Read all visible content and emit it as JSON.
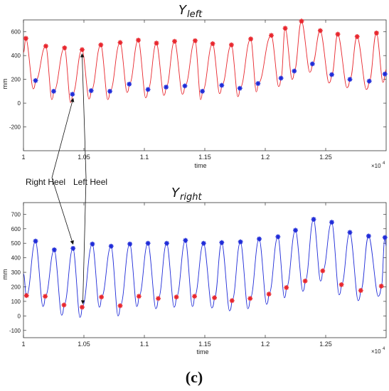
{
  "chart_data": [
    {
      "type": "line",
      "title_main": "Y",
      "title_sub": "left",
      "xlabel": "time",
      "ylabel": "mm",
      "x_exponent": "×10",
      "x_exponent_power": "4",
      "xlim": [
        10000,
        13000
      ],
      "ylim": [
        -400,
        700
      ],
      "x_ticks": [
        10000,
        10500,
        11000,
        11500,
        12000,
        12500
      ],
      "x_tick_labels": [
        "1",
        "1.05",
        "1.1",
        "1.15",
        "1.2",
        "1.25"
      ],
      "y_ticks": [
        -200,
        0,
        200,
        400,
        600
      ],
      "y_tick_labels": [
        "-200",
        "0",
        "200",
        "400",
        "600"
      ],
      "line_color": "#e8262d",
      "series": [
        {
          "marker": "peak",
          "color": "#e8262d",
          "x": [
            10020,
            10185,
            10340,
            10485,
            10640,
            10800,
            10950,
            11100,
            11250,
            11420,
            11565,
            11720,
            11880,
            12050,
            12165,
            12300,
            12455,
            12600,
            12760,
            12920
          ],
          "values": [
            545,
            480,
            465,
            450,
            490,
            510,
            530,
            505,
            520,
            525,
            500,
            490,
            540,
            570,
            630,
            690,
            610,
            580,
            560,
            590
          ]
        },
        {
          "marker": "valley",
          "color": "#1f2bd8",
          "x": [
            10100,
            10250,
            10405,
            10560,
            10715,
            10875,
            11030,
            11180,
            11335,
            11480,
            11640,
            11790,
            11940,
            12130,
            12240,
            12390,
            12550,
            12700,
            12860,
            12990
          ],
          "values": [
            190,
            100,
            75,
            105,
            100,
            160,
            115,
            135,
            145,
            100,
            150,
            125,
            165,
            210,
            270,
            330,
            240,
            200,
            185,
            245
          ]
        }
      ]
    },
    {
      "type": "line",
      "title_main": "Y",
      "title_sub": "right",
      "xlabel": "time",
      "ylabel": "mm",
      "x_exponent": "×10",
      "x_exponent_power": "4",
      "xlim": [
        10000,
        13000
      ],
      "ylim": [
        -150,
        780
      ],
      "x_ticks": [
        10000,
        10500,
        11000,
        11500,
        12000,
        12500
      ],
      "x_tick_labels": [
        "1",
        "1.05",
        "1.1",
        "1.15",
        "1.2",
        "1.25"
      ],
      "y_ticks": [
        -100,
        0,
        100,
        200,
        300,
        400,
        500,
        600,
        700
      ],
      "y_tick_labels": [
        "-100",
        "0",
        "100",
        "200",
        "300",
        "400",
        "500",
        "600",
        "700"
      ],
      "line_color": "#1f2bd8",
      "series": [
        {
          "marker": "peak",
          "color": "#1f2bd8",
          "x": [
            10100,
            10255,
            10410,
            10570,
            10725,
            10880,
            11030,
            11185,
            11340,
            11490,
            11640,
            11795,
            11950,
            12105,
            12250,
            12400,
            12550,
            12700,
            12855,
            12990
          ],
          "values": [
            515,
            455,
            465,
            495,
            480,
            495,
            500,
            500,
            520,
            500,
            505,
            510,
            530,
            545,
            590,
            665,
            645,
            575,
            550,
            540
          ]
        },
        {
          "marker": "valley",
          "color": "#e8262d",
          "x": [
            10025,
            10180,
            10335,
            10485,
            10645,
            10800,
            10955,
            11115,
            11265,
            11415,
            11580,
            11725,
            11875,
            12030,
            12175,
            12330,
            12475,
            12630,
            12790,
            12960
          ],
          "values": [
            140,
            135,
            75,
            60,
            130,
            70,
            135,
            120,
            130,
            135,
            125,
            105,
            120,
            150,
            195,
            240,
            310,
            215,
            175,
            205
          ]
        }
      ]
    }
  ],
  "annotations": {
    "right_heel": "Right Heel",
    "left_heel": "Left Heel"
  },
  "caption": "(c)"
}
